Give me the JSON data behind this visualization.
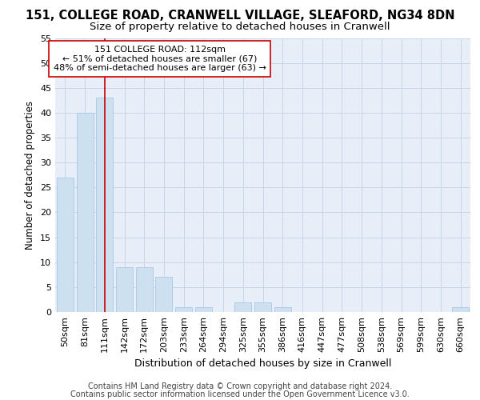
{
  "title_line1": "151, COLLEGE ROAD, CRANWELL VILLAGE, SLEAFORD, NG34 8DN",
  "title_line2": "Size of property relative to detached houses in Cranwell",
  "xlabel": "Distribution of detached houses by size in Cranwell",
  "ylabel": "Number of detached properties",
  "categories": [
    "50sqm",
    "81sqm",
    "111sqm",
    "142sqm",
    "172sqm",
    "203sqm",
    "233sqm",
    "264sqm",
    "294sqm",
    "325sqm",
    "355sqm",
    "386sqm",
    "416sqm",
    "447sqm",
    "477sqm",
    "508sqm",
    "538sqm",
    "569sqm",
    "599sqm",
    "630sqm",
    "660sqm"
  ],
  "values": [
    27,
    40,
    43,
    9,
    9,
    7,
    1,
    1,
    0,
    2,
    2,
    1,
    0,
    0,
    0,
    0,
    0,
    0,
    0,
    0,
    1
  ],
  "bar_color": "#cce0f0",
  "bar_edge_color": "#aac8e8",
  "vline_x_idx": 2,
  "vline_color": "#cc0000",
  "annotation_line1": "151 COLLEGE ROAD: 112sqm",
  "annotation_line2": "← 51% of detached houses are smaller (67)",
  "annotation_line3": "48% of semi-detached houses are larger (63) →",
  "annotation_box_facecolor": "#ffffff",
  "annotation_box_edgecolor": "#cc0000",
  "ylim": [
    0,
    55
  ],
  "yticks": [
    0,
    5,
    10,
    15,
    20,
    25,
    30,
    35,
    40,
    45,
    50,
    55
  ],
  "grid_color": "#c8d4e8",
  "background_color": "#e8eef8",
  "footer_line1": "Contains HM Land Registry data © Crown copyright and database right 2024.",
  "footer_line2": "Contains public sector information licensed under the Open Government Licence v3.0.",
  "title1_fontsize": 10.5,
  "title2_fontsize": 9.5,
  "xlabel_fontsize": 9,
  "ylabel_fontsize": 8.5,
  "tick_fontsize": 8,
  "annotation_fontsize": 8,
  "footer_fontsize": 7
}
